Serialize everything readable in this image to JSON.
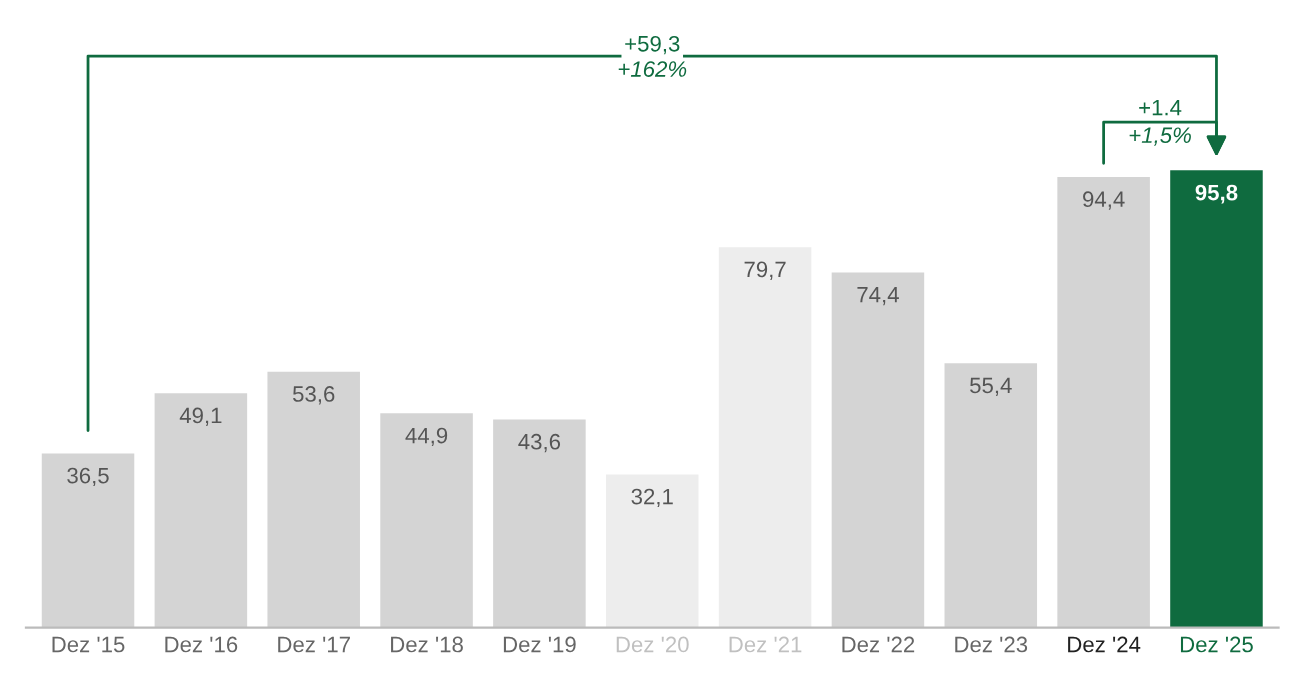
{
  "chart_data": {
    "type": "bar",
    "categories": [
      "Dez '15",
      "Dez '16",
      "Dez '17",
      "Dez '18",
      "Dez '19",
      "Dez '20",
      "Dez '21",
      "Dez '22",
      "Dez '23",
      "Dez '24",
      "Dez '25"
    ],
    "values": [
      36.5,
      49.1,
      53.6,
      44.9,
      43.6,
      32.1,
      79.7,
      74.4,
      55.4,
      94.4,
      95.8
    ],
    "value_labels": [
      "36,5",
      "49,1",
      "53,6",
      "44,9",
      "43,6",
      "32,1",
      "79,7",
      "74,4",
      "55,4",
      "94,4",
      "95,8"
    ],
    "colors": [
      "#d4d4d4",
      "#d4d4d4",
      "#d4d4d4",
      "#d4d4d4",
      "#d4d4d4",
      "#ededed",
      "#ededed",
      "#d4d4d4",
      "#d4d4d4",
      "#d4d4d4",
      "#0f6b3f"
    ],
    "annotations": [
      "+59,3",
      "+162%",
      "+1.4",
      "+1,5%"
    ],
    "grid": false,
    "legend": false
  }
}
